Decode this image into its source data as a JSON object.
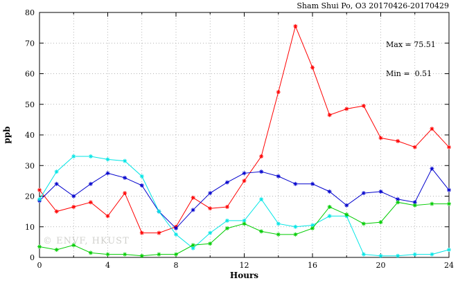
{
  "chart_data": {
    "type": "line",
    "title": "Sham Shui Po, O3 20170426-20170429",
    "xlabel": "Hours",
    "ylabel": "ppb",
    "xlim": [
      0,
      24
    ],
    "ylim": [
      0,
      80
    ],
    "x_major_ticks": [
      0,
      4,
      8,
      12,
      16,
      20,
      24
    ],
    "x_minor_step": 2,
    "y_major_ticks": [
      0,
      10,
      20,
      30,
      40,
      50,
      60,
      70,
      80
    ],
    "grid": "dotted",
    "legend": "none",
    "marker": "asterisk",
    "annotations": {
      "max": "Max = 75.51",
      "min": "Min =  0.51"
    },
    "x": [
      0,
      1,
      2,
      3,
      4,
      5,
      6,
      7,
      8,
      9,
      10,
      11,
      12,
      13,
      14,
      15,
      16,
      17,
      18,
      19,
      20,
      21,
      22,
      23,
      24
    ],
    "series": [
      {
        "name": "red-series",
        "color": "#ff0000",
        "values": [
          22,
          15,
          16.5,
          18,
          13.5,
          21,
          8,
          8,
          10,
          19.5,
          16,
          16.5,
          25,
          33,
          54,
          75.51,
          62,
          46.5,
          48.5,
          49.5,
          39,
          38,
          36,
          42,
          36
        ]
      },
      {
        "name": "blue-series",
        "color": "#0000cd",
        "values": [
          18.5,
          24,
          20,
          24,
          27.5,
          26,
          23.5,
          15,
          9.5,
          15.5,
          21,
          24.5,
          27.5,
          28,
          26.5,
          24,
          24,
          21.5,
          17,
          21,
          21.5,
          19,
          18,
          29,
          22
        ]
      },
      {
        "name": "cyan-series",
        "color": "#00e5e5",
        "values": [
          19,
          28,
          33,
          33,
          32,
          31.5,
          26.5,
          15,
          7.5,
          3,
          8,
          12,
          12,
          19,
          11,
          10,
          10.5,
          13.5,
          13.5,
          1,
          0.51,
          0.51,
          1,
          1,
          2.5
        ]
      },
      {
        "name": "green-series",
        "color": "#00cc00",
        "values": [
          3.5,
          2.5,
          4,
          1.5,
          1,
          1,
          0.51,
          1,
          1,
          4,
          4.5,
          9.5,
          11,
          8.5,
          7.5,
          7.5,
          9.5,
          16.5,
          14,
          11,
          11.5,
          18,
          17,
          17.5,
          17.5
        ]
      }
    ]
  },
  "watermark": "© ENVF, HKUST",
  "colors": {
    "frame": "#000000",
    "grid": "#999999",
    "background": "#ffffff"
  }
}
